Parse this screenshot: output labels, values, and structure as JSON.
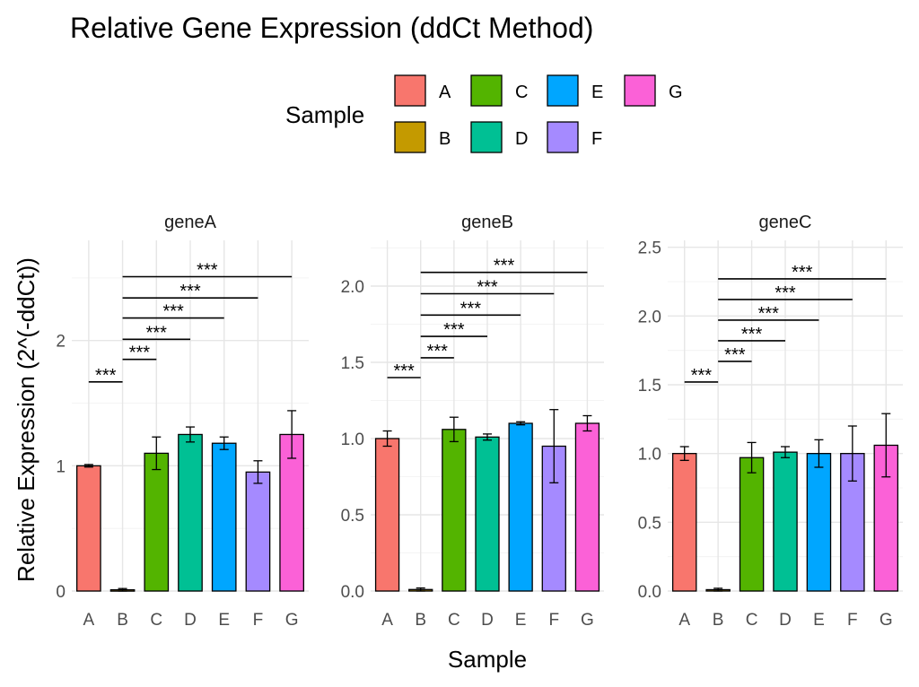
{
  "chart_data": {
    "type": "bar",
    "title": "Relative Gene Expression (ddCt Method)",
    "xlabel": "Sample",
    "ylabel": "Relative Expression (2^(-ddCt))",
    "legend": {
      "title": "Sample",
      "position": "top",
      "entries": [
        {
          "label": "A",
          "color": "#F8766D"
        },
        {
          "label": "C",
          "color": "#53B400"
        },
        {
          "label": "E",
          "color": "#00A6FF"
        },
        {
          "label": "G",
          "color": "#FB61D7"
        },
        {
          "label": "B",
          "color": "#C49A00"
        },
        {
          "label": "D",
          "color": "#00C094"
        },
        {
          "label": "F",
          "color": "#A58AFF"
        }
      ]
    },
    "categories": [
      "A",
      "B",
      "C",
      "D",
      "E",
      "F",
      "G"
    ],
    "colors": [
      "#F8766D",
      "#C49A00",
      "#53B400",
      "#00C094",
      "#00A6FF",
      "#A58AFF",
      "#FB61D7"
    ],
    "grid": true,
    "panels": [
      {
        "name": "geneA",
        "ylim": [
          0,
          2.8
        ],
        "yticks": [
          0,
          1,
          2
        ],
        "ytick_labels": [
          "0",
          "1",
          "2"
        ],
        "values": [
          1.0,
          0.01,
          1.1,
          1.25,
          1.18,
          0.95,
          1.25
        ],
        "errors": [
          0.01,
          0.01,
          0.13,
          0.06,
          0.05,
          0.09,
          0.19
        ],
        "significance": [
          {
            "from": "A",
            "to": "B",
            "y": 1.67,
            "label": "***"
          },
          {
            "from": "B",
            "to": "C",
            "y": 1.85,
            "label": "***"
          },
          {
            "from": "B",
            "to": "D",
            "y": 2.01,
            "label": "***"
          },
          {
            "from": "B",
            "to": "E",
            "y": 2.18,
            "label": "***"
          },
          {
            "from": "B",
            "to": "F",
            "y": 2.34,
            "label": "***"
          },
          {
            "from": "B",
            "to": "G",
            "y": 2.51,
            "label": "***"
          }
        ]
      },
      {
        "name": "geneB",
        "ylim": [
          0,
          2.3
        ],
        "yticks": [
          0,
          0.5,
          1.0,
          1.5,
          2.0
        ],
        "ytick_labels": [
          "0.0",
          "0.5",
          "1.0",
          "1.5",
          "2.0"
        ],
        "values": [
          1.0,
          0.01,
          1.06,
          1.01,
          1.1,
          0.95,
          1.1
        ],
        "errors": [
          0.05,
          0.01,
          0.08,
          0.02,
          0.01,
          0.24,
          0.05
        ],
        "significance": [
          {
            "from": "A",
            "to": "B",
            "y": 1.4,
            "label": "***"
          },
          {
            "from": "B",
            "to": "C",
            "y": 1.53,
            "label": "***"
          },
          {
            "from": "B",
            "to": "D",
            "y": 1.67,
            "label": "***"
          },
          {
            "from": "B",
            "to": "E",
            "y": 1.81,
            "label": "***"
          },
          {
            "from": "B",
            "to": "F",
            "y": 1.95,
            "label": "***"
          },
          {
            "from": "B",
            "to": "G",
            "y": 2.09,
            "label": "***"
          }
        ]
      },
      {
        "name": "geneC",
        "ylim": [
          0,
          2.55
        ],
        "yticks": [
          0,
          0.5,
          1.0,
          1.5,
          2.0,
          2.5
        ],
        "ytick_labels": [
          "0.0",
          "0.5",
          "1.0",
          "1.5",
          "2.0",
          "2.5"
        ],
        "values": [
          1.0,
          0.01,
          0.97,
          1.01,
          1.0,
          1.0,
          1.06
        ],
        "errors": [
          0.05,
          0.01,
          0.11,
          0.04,
          0.1,
          0.2,
          0.23
        ],
        "significance": [
          {
            "from": "A",
            "to": "B",
            "y": 1.52,
            "label": "***"
          },
          {
            "from": "B",
            "to": "C",
            "y": 1.67,
            "label": "***"
          },
          {
            "from": "B",
            "to": "D",
            "y": 1.82,
            "label": "***"
          },
          {
            "from": "B",
            "to": "E",
            "y": 1.97,
            "label": "***"
          },
          {
            "from": "B",
            "to": "F",
            "y": 2.12,
            "label": "***"
          },
          {
            "from": "B",
            "to": "G",
            "y": 2.27,
            "label": "***"
          }
        ]
      }
    ]
  }
}
